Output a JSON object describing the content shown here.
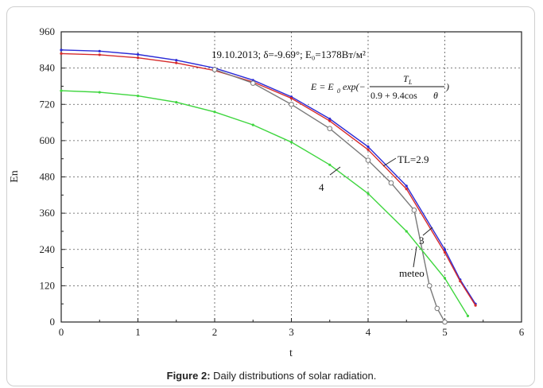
{
  "caption": {
    "label": "Figure 2:",
    "text": "Daily distributions of solar radiation."
  },
  "chart_data": {
    "type": "line",
    "xlabel": "t",
    "ylabel": "En",
    "xlim": [
      0,
      6
    ],
    "ylim": [
      0,
      960
    ],
    "xticks": [
      "0",
      "1",
      "2",
      "3",
      "4",
      "5",
      "6"
    ],
    "yticks": [
      "0",
      "120",
      "240",
      "360",
      "480",
      "600",
      "720",
      "840",
      "960"
    ],
    "grid": true,
    "header": "19.10.2013; δ=-9.69°; E₀=1378Вт/м²",
    "formula": "E = E₀ exp(− T_L / (0.9 + 9.4 cos θ))",
    "labels": {
      "tl": "TL=2.9",
      "three": "3",
      "four": "4",
      "meteo": "meteo"
    },
    "series": [
      {
        "color": "#2b2bd6",
        "marker": "dot",
        "x": [
          0,
          0.5,
          1.0,
          1.5,
          2.0,
          2.5,
          3.0,
          3.5,
          4.0,
          4.5,
          5.0,
          5.2,
          5.4
        ],
        "y": [
          900,
          896,
          885,
          866,
          840,
          800,
          745,
          672,
          580,
          450,
          240,
          140,
          60
        ]
      },
      {
        "color": "#d62b2b",
        "marker": "dot",
        "x": [
          0,
          0.5,
          1.0,
          1.5,
          2.0,
          2.5,
          3.0,
          3.5,
          4.0,
          4.5,
          5.0,
          5.2,
          5.4
        ],
        "y": [
          888,
          884,
          874,
          857,
          832,
          794,
          740,
          665,
          570,
          440,
          230,
          135,
          55
        ]
      },
      {
        "color": "#7a7a7a",
        "marker": "circle",
        "x": [
          2.0,
          2.5,
          3.0,
          3.5,
          4.0,
          4.3,
          4.6,
          4.8,
          4.9,
          5.0
        ],
        "y": [
          835,
          790,
          720,
          640,
          535,
          460,
          370,
          120,
          45,
          0
        ]
      },
      {
        "color": "#3fd63f",
        "marker": "dot",
        "x": [
          0,
          0.5,
          1.0,
          1.5,
          2.0,
          2.5,
          3.0,
          3.5,
          4.0,
          4.5,
          5.0,
          5.3
        ],
        "y": [
          765,
          760,
          748,
          727,
          695,
          652,
          595,
          520,
          425,
          300,
          145,
          20
        ]
      }
    ]
  }
}
